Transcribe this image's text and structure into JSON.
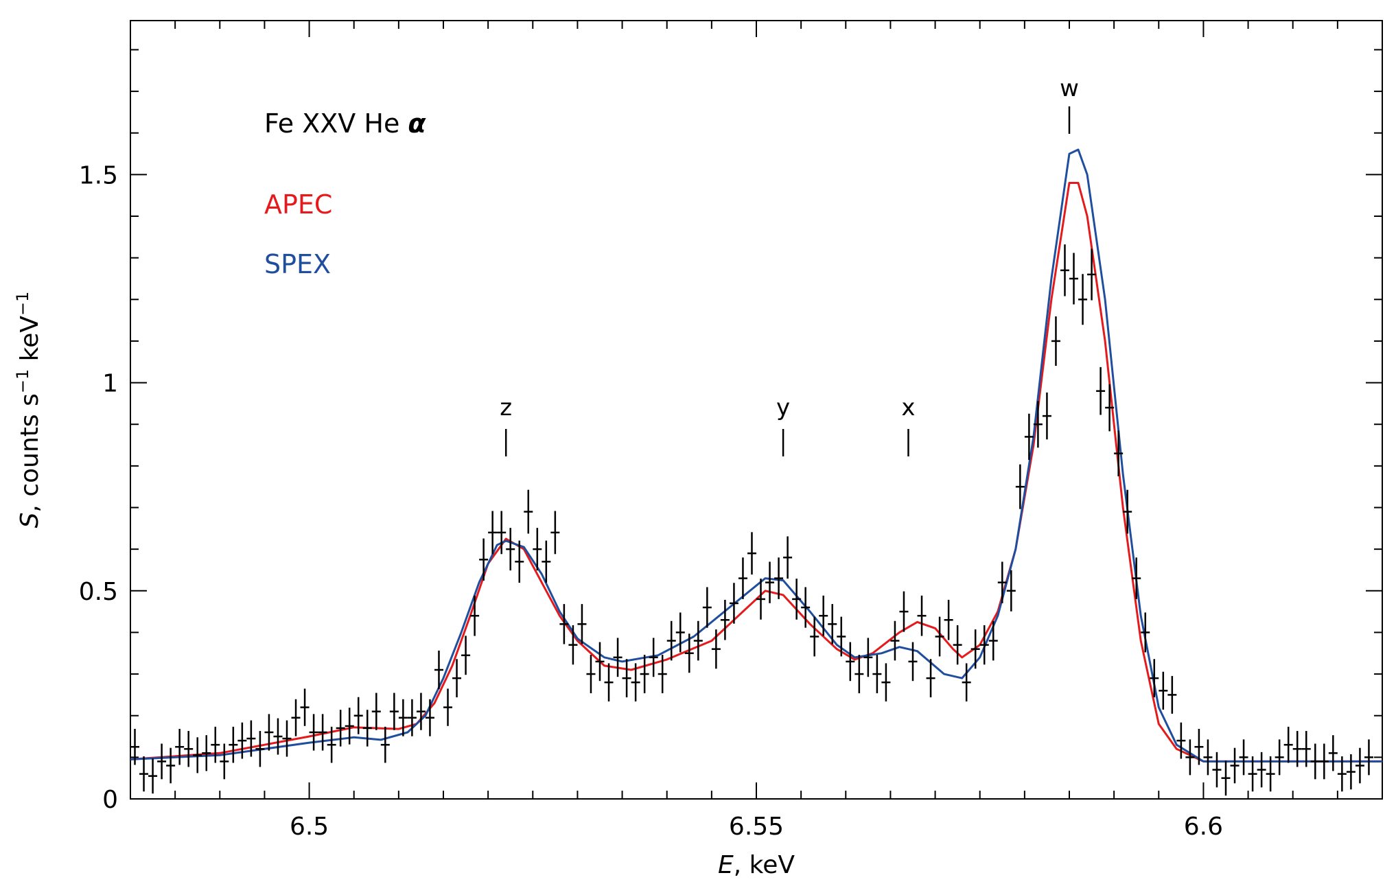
{
  "chart_data": {
    "type": "line",
    "xlabel_var": "E",
    "xlabel_rest": ", keV",
    "ylabel_var": "S",
    "ylabel_rest": ", counts s",
    "ylabel_sup1": "−1",
    "ylabel_mid": " keV",
    "ylabel_sup2": "−1",
    "xlim": [
      6.48,
      6.62
    ],
    "ylim": [
      0,
      1.87
    ],
    "x_ticks": [
      {
        "value": 6.5,
        "label": "6.5"
      },
      {
        "value": 6.55,
        "label": "6.55"
      },
      {
        "value": 6.6,
        "label": "6.6"
      }
    ],
    "y_ticks": [
      {
        "value": 0,
        "label": "0"
      },
      {
        "value": 0.5,
        "label": "0.5"
      },
      {
        "value": 1,
        "label": "1"
      },
      {
        "value": 1.5,
        "label": "1.5"
      }
    ],
    "annotations": {
      "title_main": "Fe XXV He ",
      "title_alpha": "α",
      "apec_label": "APEC",
      "spex_label": "SPEX"
    },
    "line_markers": [
      {
        "label": "z",
        "x": 6.522
      },
      {
        "label": "y",
        "x": 6.553
      },
      {
        "label": "x",
        "x": 6.567
      },
      {
        "label": "w",
        "x": 6.585
      }
    ],
    "series": [
      {
        "name": "APEC",
        "color": "#e41a1c",
        "points": [
          [
            6.48,
            0.095
          ],
          [
            6.49,
            0.11
          ],
          [
            6.5,
            0.15
          ],
          [
            6.505,
            0.172
          ],
          [
            6.51,
            0.168
          ],
          [
            6.512,
            0.18
          ],
          [
            6.514,
            0.23
          ],
          [
            6.516,
            0.32
          ],
          [
            6.518,
            0.44
          ],
          [
            6.52,
            0.565
          ],
          [
            6.522,
            0.625
          ],
          [
            6.524,
            0.6
          ],
          [
            6.526,
            0.52
          ],
          [
            6.528,
            0.44
          ],
          [
            6.53,
            0.38
          ],
          [
            6.533,
            0.32
          ],
          [
            6.536,
            0.31
          ],
          [
            6.54,
            0.335
          ],
          [
            6.545,
            0.38
          ],
          [
            6.548,
            0.44
          ],
          [
            6.551,
            0.5
          ],
          [
            6.553,
            0.49
          ],
          [
            6.556,
            0.42
          ],
          [
            6.559,
            0.36
          ],
          [
            6.561,
            0.335
          ],
          [
            6.563,
            0.35
          ],
          [
            6.566,
            0.4
          ],
          [
            6.568,
            0.425
          ],
          [
            6.57,
            0.41
          ],
          [
            6.572,
            0.36
          ],
          [
            6.573,
            0.34
          ],
          [
            6.575,
            0.37
          ],
          [
            6.577,
            0.45
          ],
          [
            6.579,
            0.6
          ],
          [
            6.581,
            0.85
          ],
          [
            6.583,
            1.2
          ],
          [
            6.585,
            1.48
          ],
          [
            6.586,
            1.48
          ],
          [
            6.587,
            1.4
          ],
          [
            6.589,
            1.1
          ],
          [
            6.591,
            0.7
          ],
          [
            6.593,
            0.38
          ],
          [
            6.595,
            0.18
          ],
          [
            6.597,
            0.12
          ],
          [
            6.6,
            0.09
          ],
          [
            6.62,
            0.09
          ]
        ]
      },
      {
        "name": "SPEX",
        "color": "#1f4e9e",
        "points": [
          [
            6.48,
            0.095
          ],
          [
            6.49,
            0.105
          ],
          [
            6.5,
            0.135
          ],
          [
            6.505,
            0.148
          ],
          [
            6.508,
            0.142
          ],
          [
            6.511,
            0.16
          ],
          [
            6.513,
            0.2
          ],
          [
            6.515,
            0.29
          ],
          [
            6.517,
            0.4
          ],
          [
            6.519,
            0.52
          ],
          [
            6.521,
            0.61
          ],
          [
            6.522,
            0.62
          ],
          [
            6.524,
            0.605
          ],
          [
            6.526,
            0.54
          ],
          [
            6.528,
            0.45
          ],
          [
            6.53,
            0.385
          ],
          [
            6.533,
            0.34
          ],
          [
            6.535,
            0.33
          ],
          [
            6.539,
            0.345
          ],
          [
            6.543,
            0.39
          ],
          [
            6.547,
            0.46
          ],
          [
            6.551,
            0.53
          ],
          [
            6.553,
            0.525
          ],
          [
            6.556,
            0.45
          ],
          [
            6.559,
            0.37
          ],
          [
            6.561,
            0.34
          ],
          [
            6.564,
            0.35
          ],
          [
            6.566,
            0.365
          ],
          [
            6.568,
            0.355
          ],
          [
            6.571,
            0.3
          ],
          [
            6.573,
            0.29
          ],
          [
            6.575,
            0.34
          ],
          [
            6.577,
            0.44
          ],
          [
            6.579,
            0.6
          ],
          [
            6.581,
            0.87
          ],
          [
            6.583,
            1.25
          ],
          [
            6.585,
            1.55
          ],
          [
            6.586,
            1.56
          ],
          [
            6.587,
            1.5
          ],
          [
            6.589,
            1.2
          ],
          [
            6.591,
            0.78
          ],
          [
            6.593,
            0.44
          ],
          [
            6.595,
            0.22
          ],
          [
            6.597,
            0.13
          ],
          [
            6.6,
            0.09
          ],
          [
            6.62,
            0.09
          ]
        ]
      },
      {
        "name": "",
        "color": "#000000",
        "points": [
          [
            6.4805,
            0.125
          ],
          [
            6.4815,
            0.06
          ],
          [
            6.4825,
            0.055
          ],
          [
            6.4835,
            0.09
          ],
          [
            6.4845,
            0.08
          ],
          [
            6.4855,
            0.125
          ],
          [
            6.4865,
            0.12
          ],
          [
            6.4875,
            0.105
          ],
          [
            6.4885,
            0.11
          ],
          [
            6.4895,
            0.13
          ],
          [
            6.4905,
            0.09
          ],
          [
            6.4915,
            0.13
          ],
          [
            6.4925,
            0.14
          ],
          [
            6.4935,
            0.145
          ],
          [
            6.4945,
            0.12
          ],
          [
            6.4955,
            0.16
          ],
          [
            6.4965,
            0.15
          ],
          [
            6.4975,
            0.145
          ],
          [
            6.4985,
            0.195
          ],
          [
            6.4995,
            0.22
          ],
          [
            6.5005,
            0.16
          ],
          [
            6.5015,
            0.16
          ],
          [
            6.5025,
            0.13
          ],
          [
            6.5035,
            0.17
          ],
          [
            6.5045,
            0.175
          ],
          [
            6.5055,
            0.2
          ],
          [
            6.5065,
            0.17
          ],
          [
            6.5075,
            0.21
          ],
          [
            6.5085,
            0.13
          ],
          [
            6.5095,
            0.21
          ],
          [
            6.5105,
            0.195
          ],
          [
            6.5115,
            0.195
          ],
          [
            6.5125,
            0.21
          ],
          [
            6.5135,
            0.195
          ],
          [
            6.5145,
            0.31
          ],
          [
            6.5155,
            0.22
          ],
          [
            6.5165,
            0.29
          ],
          [
            6.5175,
            0.345
          ],
          [
            6.5185,
            0.44
          ],
          [
            6.5195,
            0.575
          ],
          [
            6.5205,
            0.64
          ],
          [
            6.5215,
            0.64
          ],
          [
            6.5225,
            0.6
          ],
          [
            6.5235,
            0.57
          ],
          [
            6.5245,
            0.69
          ],
          [
            6.5255,
            0.6
          ],
          [
            6.5265,
            0.57
          ],
          [
            6.5275,
            0.64
          ],
          [
            6.5285,
            0.42
          ],
          [
            6.5295,
            0.37
          ],
          [
            6.5305,
            0.42
          ],
          [
            6.5315,
            0.3
          ],
          [
            6.5325,
            0.33
          ],
          [
            6.5335,
            0.28
          ],
          [
            6.5345,
            0.34
          ],
          [
            6.5355,
            0.29
          ],
          [
            6.5365,
            0.28
          ],
          [
            6.5375,
            0.3
          ],
          [
            6.5385,
            0.34
          ],
          [
            6.5395,
            0.3
          ],
          [
            6.5405,
            0.38
          ],
          [
            6.5415,
            0.4
          ],
          [
            6.5425,
            0.35
          ],
          [
            6.5435,
            0.38
          ],
          [
            6.5445,
            0.46
          ],
          [
            6.5455,
            0.36
          ],
          [
            6.5465,
            0.43
          ],
          [
            6.5475,
            0.47
          ],
          [
            6.5485,
            0.53
          ],
          [
            6.5495,
            0.59
          ],
          [
            6.5505,
            0.48
          ],
          [
            6.5515,
            0.52
          ],
          [
            6.5525,
            0.53
          ],
          [
            6.5535,
            0.58
          ],
          [
            6.5545,
            0.48
          ],
          [
            6.5555,
            0.46
          ],
          [
            6.5565,
            0.39
          ],
          [
            6.5575,
            0.44
          ],
          [
            6.5585,
            0.42
          ],
          [
            6.5595,
            0.39
          ],
          [
            6.5605,
            0.33
          ],
          [
            6.5615,
            0.3
          ],
          [
            6.5625,
            0.34
          ],
          [
            6.5635,
            0.3
          ],
          [
            6.5645,
            0.28
          ],
          [
            6.5655,
            0.38
          ],
          [
            6.5665,
            0.45
          ],
          [
            6.5675,
            0.33
          ],
          [
            6.5685,
            0.44
          ],
          [
            6.5695,
            0.29
          ],
          [
            6.5705,
            0.39
          ],
          [
            6.5715,
            0.43
          ],
          [
            6.5725,
            0.37
          ],
          [
            6.5735,
            0.28
          ],
          [
            6.5745,
            0.36
          ],
          [
            6.5755,
            0.37
          ],
          [
            6.5765,
            0.38
          ],
          [
            6.5775,
            0.52
          ],
          [
            6.5785,
            0.5
          ],
          [
            6.5795,
            0.75
          ],
          [
            6.5805,
            0.87
          ],
          [
            6.5815,
            0.9
          ],
          [
            6.5825,
            0.92
          ],
          [
            6.5835,
            1.1
          ],
          [
            6.5845,
            1.27
          ],
          [
            6.5855,
            1.25
          ],
          [
            6.5865,
            1.2
          ],
          [
            6.5875,
            1.26
          ],
          [
            6.5885,
            0.98
          ],
          [
            6.5895,
            0.94
          ],
          [
            6.5905,
            0.83
          ],
          [
            6.5915,
            0.69
          ],
          [
            6.5925,
            0.53
          ],
          [
            6.5935,
            0.4
          ],
          [
            6.5945,
            0.29
          ],
          [
            6.5955,
            0.26
          ],
          [
            6.5965,
            0.25
          ],
          [
            6.5975,
            0.14
          ],
          [
            6.5985,
            0.1
          ],
          [
            6.5995,
            0.125
          ],
          [
            6.6005,
            0.1
          ],
          [
            6.6015,
            0.07
          ],
          [
            6.6025,
            0.05
          ],
          [
            6.6035,
            0.08
          ],
          [
            6.6045,
            0.1
          ],
          [
            6.6055,
            0.06
          ],
          [
            6.6065,
            0.07
          ],
          [
            6.6075,
            0.06
          ],
          [
            6.6085,
            0.1
          ],
          [
            6.6095,
            0.13
          ],
          [
            6.6105,
            0.12
          ],
          [
            6.6115,
            0.12
          ],
          [
            6.6125,
            0.09
          ],
          [
            6.6135,
            0.09
          ],
          [
            6.6145,
            0.11
          ],
          [
            6.6155,
            0.06
          ],
          [
            6.6165,
            0.065
          ],
          [
            6.6175,
            0.08
          ],
          [
            6.6185,
            0.1
          ]
        ]
      }
    ]
  }
}
